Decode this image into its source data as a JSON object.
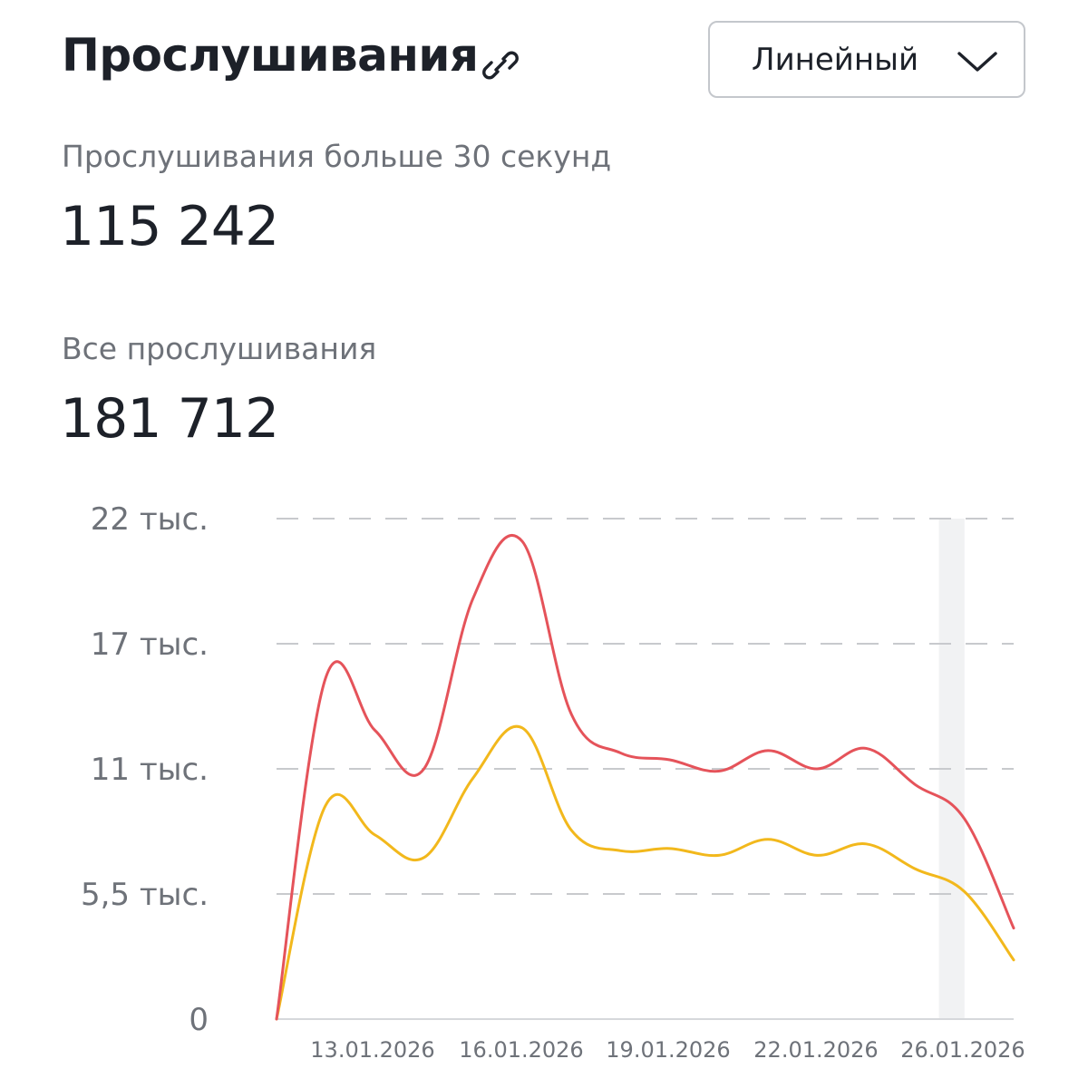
{
  "header": {
    "title": "Прослушивания",
    "link_icon": "link-icon",
    "view_select": {
      "selected": "Линейный",
      "icon": "chevron-down-icon"
    }
  },
  "metrics": [
    {
      "label": "Прослушивания больше 30 секунд",
      "value": "115 242"
    },
    {
      "label": "Все прослушивания",
      "value": "181 712"
    }
  ],
  "colors": {
    "series_over30": "#e5535a",
    "series_all": "#f2b81c",
    "grid": "#c8cacd",
    "highlight": "#f1f2f3"
  },
  "chart_data": {
    "type": "line",
    "title": "",
    "xlabel": "",
    "ylabel": "",
    "ylim": [
      0,
      22000
    ],
    "y_ticks": [
      {
        "value": 0,
        "label": "0"
      },
      {
        "value": 5500,
        "label": "5,5 тыс."
      },
      {
        "value": 11000,
        "label": "11 тыс."
      },
      {
        "value": 16500,
        "label": "17 тыс."
      },
      {
        "value": 22000,
        "label": "22 тыс."
      }
    ],
    "x_ticks": [
      "13.01.2026",
      "16.01.2026",
      "19.01.2026",
      "22.01.2026",
      "26.01.2026"
    ],
    "grid": true,
    "highlighted_ranges": [
      [
        14,
        15
      ],
      [
        21,
        22
      ]
    ],
    "series": [
      {
        "color": "#e5535a",
        "points": [
          [
            0,
            0
          ],
          [
            1,
            15000
          ],
          [
            2,
            12700
          ],
          [
            3,
            11000
          ],
          [
            4,
            18500
          ],
          [
            5,
            21000
          ],
          [
            6,
            13400
          ],
          [
            7,
            11700
          ],
          [
            8,
            11400
          ],
          [
            9,
            10900
          ],
          [
            10,
            11800
          ],
          [
            11,
            11000
          ],
          [
            12,
            11900
          ],
          [
            13,
            10300
          ],
          [
            14,
            8800
          ],
          [
            15,
            4000
          ]
        ]
      },
      {
        "color": "#f2b81c",
        "points": [
          [
            0,
            0
          ],
          [
            1,
            9400
          ],
          [
            2,
            8100
          ],
          [
            3,
            7100
          ],
          [
            4,
            10600
          ],
          [
            5,
            12800
          ],
          [
            6,
            8300
          ],
          [
            7,
            7400
          ],
          [
            8,
            7500
          ],
          [
            9,
            7200
          ],
          [
            10,
            7900
          ],
          [
            11,
            7200
          ],
          [
            12,
            7700
          ],
          [
            13,
            6600
          ],
          [
            14,
            5600
          ],
          [
            15,
            2600
          ]
        ]
      }
    ]
  }
}
